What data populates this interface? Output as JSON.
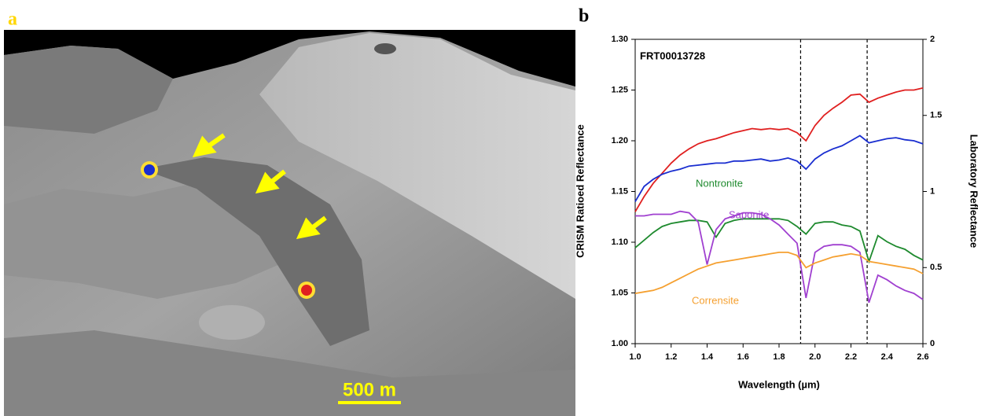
{
  "figure_a": {
    "label": "a",
    "scale_bar": "500 m"
  },
  "chart_data": {
    "type": "line",
    "panel_label": "b",
    "annotation": "FRT00013728",
    "xlabel": "Wavelength (µm)",
    "ylabel": "CRISM Ratioed Reflectance",
    "y2label": "Laboratory Reflectance",
    "xlim": [
      1.0,
      2.6
    ],
    "xticks": [
      {
        "value": 1.0,
        "label": "1.0"
      },
      1.2,
      1.4,
      1.6,
      1.8,
      {
        "value": 2.0,
        "label": "2.0"
      },
      2.2,
      2.4,
      2.6
    ],
    "ylim": [
      1.0,
      1.3
    ],
    "yticks": [
      {
        "value": 1.0,
        "label": "1.00"
      },
      1.05,
      {
        "value": 1.1,
        "label": "1.10"
      },
      1.15,
      {
        "value": 1.2,
        "label": "1.20"
      },
      1.25,
      {
        "value": 1.3,
        "label": "1.30"
      }
    ],
    "y2lim": [
      0,
      2
    ],
    "y2ticks": [
      0,
      0.5,
      1,
      1.5,
      2
    ],
    "vlines": [
      1.92,
      2.29
    ],
    "x": [
      1.0,
      1.05,
      1.1,
      1.15,
      1.2,
      1.25,
      1.3,
      1.35,
      1.4,
      1.45,
      1.5,
      1.55,
      1.6,
      1.65,
      1.7,
      1.75,
      1.8,
      1.85,
      1.9,
      1.95,
      2.0,
      2.05,
      2.1,
      2.15,
      2.2,
      2.25,
      2.3,
      2.35,
      2.4,
      2.45,
      2.5,
      2.55,
      2.6
    ],
    "series": [
      {
        "color": "#e02020",
        "values": [
          1.13,
          1.145,
          1.158,
          1.168,
          1.178,
          1.186,
          1.192,
          1.197,
          1.2,
          1.202,
          1.205,
          1.208,
          1.21,
          1.212,
          1.211,
          1.212,
          1.211,
          1.212,
          1.208,
          1.2,
          1.215,
          1.225,
          1.232,
          1.238,
          1.245,
          1.246,
          1.238,
          1.242,
          1.245,
          1.248,
          1.25,
          1.25,
          1.252
        ]
      },
      {
        "color": "#1a2ed0",
        "values": [
          1.14,
          1.155,
          1.162,
          1.167,
          1.17,
          1.172,
          1.175,
          1.176,
          1.177,
          1.178,
          1.178,
          1.18,
          1.18,
          1.181,
          1.182,
          1.18,
          1.181,
          1.183,
          1.18,
          1.172,
          1.182,
          1.188,
          1.192,
          1.195,
          1.2,
          1.205,
          1.198,
          1.2,
          1.202,
          1.203,
          1.201,
          1.2,
          1.197
        ]
      },
      {
        "name": "Nontronite",
        "color": "#1e8a2e",
        "axis": "y2",
        "values": [
          0.63,
          0.68,
          0.73,
          0.77,
          0.79,
          0.8,
          0.81,
          0.81,
          0.8,
          0.7,
          0.79,
          0.81,
          0.82,
          0.82,
          0.82,
          0.82,
          0.82,
          0.81,
          0.77,
          0.72,
          0.79,
          0.8,
          0.8,
          0.78,
          0.77,
          0.74,
          0.54,
          0.71,
          0.67,
          0.64,
          0.62,
          0.58,
          0.55
        ]
      },
      {
        "name": "Saponite",
        "color": "#a040d0",
        "axis": "y2",
        "values": [
          0.84,
          0.84,
          0.85,
          0.85,
          0.85,
          0.87,
          0.86,
          0.8,
          0.52,
          0.75,
          0.82,
          0.84,
          0.86,
          0.86,
          0.85,
          0.82,
          0.78,
          0.72,
          0.66,
          0.3,
          0.6,
          0.64,
          0.65,
          0.65,
          0.64,
          0.6,
          0.27,
          0.45,
          0.42,
          0.38,
          0.35,
          0.33,
          0.29
        ]
      },
      {
        "name": "Corrensite",
        "color": "#f5a030",
        "axis": "y2",
        "values": [
          0.33,
          0.34,
          0.35,
          0.37,
          0.4,
          0.43,
          0.46,
          0.49,
          0.51,
          0.53,
          0.54,
          0.55,
          0.56,
          0.57,
          0.58,
          0.59,
          0.6,
          0.6,
          0.58,
          0.5,
          0.53,
          0.55,
          0.57,
          0.58,
          0.59,
          0.58,
          0.54,
          0.53,
          0.52,
          0.51,
          0.5,
          0.49,
          0.46
        ]
      }
    ]
  }
}
